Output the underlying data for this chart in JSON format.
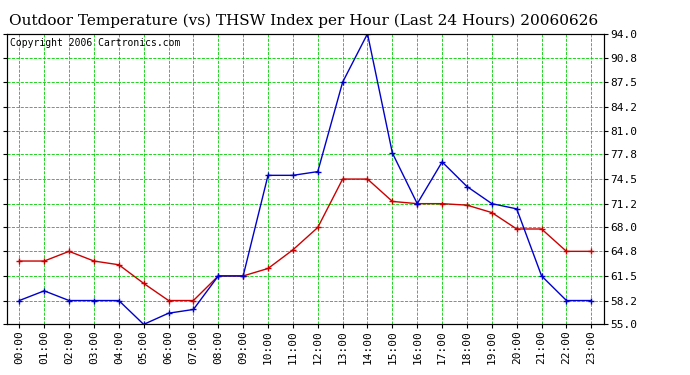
{
  "title": "Outdoor Temperature (vs) THSW Index per Hour (Last 24 Hours) 20060626",
  "copyright": "Copyright 2006 Cartronics.com",
  "hours": [
    "00:00",
    "01:00",
    "02:00",
    "03:00",
    "04:00",
    "05:00",
    "06:00",
    "07:00",
    "08:00",
    "09:00",
    "10:00",
    "11:00",
    "12:00",
    "13:00",
    "14:00",
    "15:00",
    "16:00",
    "17:00",
    "18:00",
    "19:00",
    "20:00",
    "21:00",
    "22:00",
    "23:00"
  ],
  "temp": [
    63.5,
    63.5,
    64.8,
    63.5,
    63.0,
    60.5,
    58.2,
    58.2,
    61.5,
    61.5,
    62.5,
    65.0,
    68.0,
    74.5,
    74.5,
    71.5,
    71.2,
    71.2,
    71.0,
    70.0,
    67.8,
    67.8,
    64.8,
    64.8
  ],
  "thsw": [
    58.2,
    59.5,
    58.2,
    58.2,
    58.2,
    55.0,
    56.5,
    57.0,
    61.5,
    61.5,
    75.0,
    75.0,
    75.5,
    87.5,
    94.0,
    78.0,
    71.2,
    76.8,
    73.5,
    71.2,
    70.5,
    61.5,
    58.2,
    58.2
  ],
  "temp_color": "#cc0000",
  "thsw_color": "#0000cc",
  "background_color": "#ffffff",
  "grid_color": "#00cc00",
  "ylim_min": 55.0,
  "ylim_max": 94.0,
  "yticks": [
    55.0,
    58.2,
    61.5,
    64.8,
    68.0,
    71.2,
    74.5,
    77.8,
    81.0,
    84.2,
    87.5,
    90.8,
    94.0
  ],
  "ytick_labels": [
    "55.0",
    "58.2",
    "61.5",
    "64.8",
    "68.0",
    "71.2",
    "74.5",
    "77.8",
    "81.0",
    "84.2",
    "87.5",
    "90.8",
    "94.0"
  ],
  "title_fontsize": 11,
  "copyright_fontsize": 7,
  "tick_fontsize": 8
}
